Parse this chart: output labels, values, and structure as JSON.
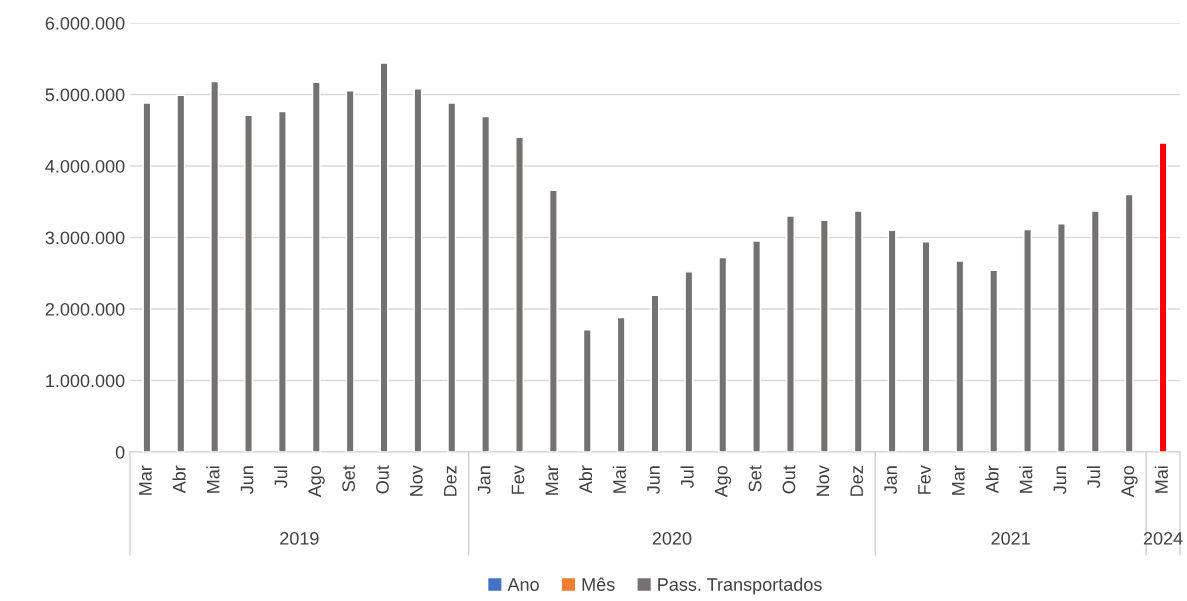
{
  "chart_data": {
    "type": "bar",
    "categories": [
      "Mar",
      "Abr",
      "Mai",
      "Jun",
      "Jul",
      "Ago",
      "Set",
      "Out",
      "Nov",
      "Dez",
      "Jan",
      "Fev",
      "Mar",
      "Abr",
      "Mai",
      "Jun",
      "Jul",
      "Ago",
      "Set",
      "Out",
      "Nov",
      "Dez",
      "Jan",
      "Fev",
      "Mar",
      "Abr",
      "Mai",
      "Jun",
      "Jul",
      "Ago",
      "Mai"
    ],
    "series": [
      {
        "name": "Ano",
        "color": "#4472c4",
        "values": [
          null,
          null,
          null,
          null,
          null,
          null,
          null,
          null,
          null,
          null,
          null,
          null,
          null,
          null,
          null,
          null,
          null,
          null,
          null,
          null,
          null,
          null,
          null,
          null,
          null,
          null,
          null,
          null,
          null,
          null,
          null
        ]
      },
      {
        "name": "Mês",
        "color": "#ed7d31",
        "values": [
          null,
          null,
          null,
          null,
          null,
          null,
          null,
          null,
          null,
          null,
          null,
          null,
          null,
          null,
          null,
          null,
          null,
          null,
          null,
          null,
          null,
          null,
          null,
          null,
          null,
          null,
          null,
          null,
          null,
          null,
          null
        ]
      },
      {
        "name": "Pass. Transportados",
        "color": "#767171",
        "colors": [
          "#767171",
          "#767171",
          "#767171",
          "#767171",
          "#767171",
          "#767171",
          "#767171",
          "#767171",
          "#767171",
          "#767171",
          "#767171",
          "#767171",
          "#767171",
          "#767171",
          "#767171",
          "#767171",
          "#767171",
          "#767171",
          "#767171",
          "#767171",
          "#767171",
          "#767171",
          "#767171",
          "#767171",
          "#767171",
          "#767171",
          "#767171",
          "#767171",
          "#767171",
          "#767171",
          "#ff0000"
        ],
        "values": [
          4880000,
          4990000,
          5180000,
          4710000,
          4760000,
          5170000,
          5050000,
          5440000,
          5080000,
          4880000,
          4690000,
          4400000,
          3660000,
          1710000,
          1880000,
          2190000,
          2520000,
          2720000,
          2950000,
          3300000,
          3240000,
          3370000,
          3100000,
          2940000,
          2670000,
          2540000,
          3110000,
          3190000,
          3370000,
          3600000,
          4320000
        ]
      }
    ],
    "ylim": [
      0,
      6000000
    ],
    "yticks": [
      {
        "value": 0,
        "label": "0"
      },
      {
        "value": 1000000,
        "label": "1.000.000"
      },
      {
        "value": 2000000,
        "label": "2.000.000"
      },
      {
        "value": 3000000,
        "label": "3.000.000"
      },
      {
        "value": 4000000,
        "label": "4.000.000"
      },
      {
        "value": 5000000,
        "label": "5.000.000"
      },
      {
        "value": 6000000,
        "label": "6.000.000"
      }
    ],
    "annotations": [
      "2019",
      "2020",
      "2021",
      "2024"
    ],
    "grid": "y",
    "legend": "bottom"
  }
}
